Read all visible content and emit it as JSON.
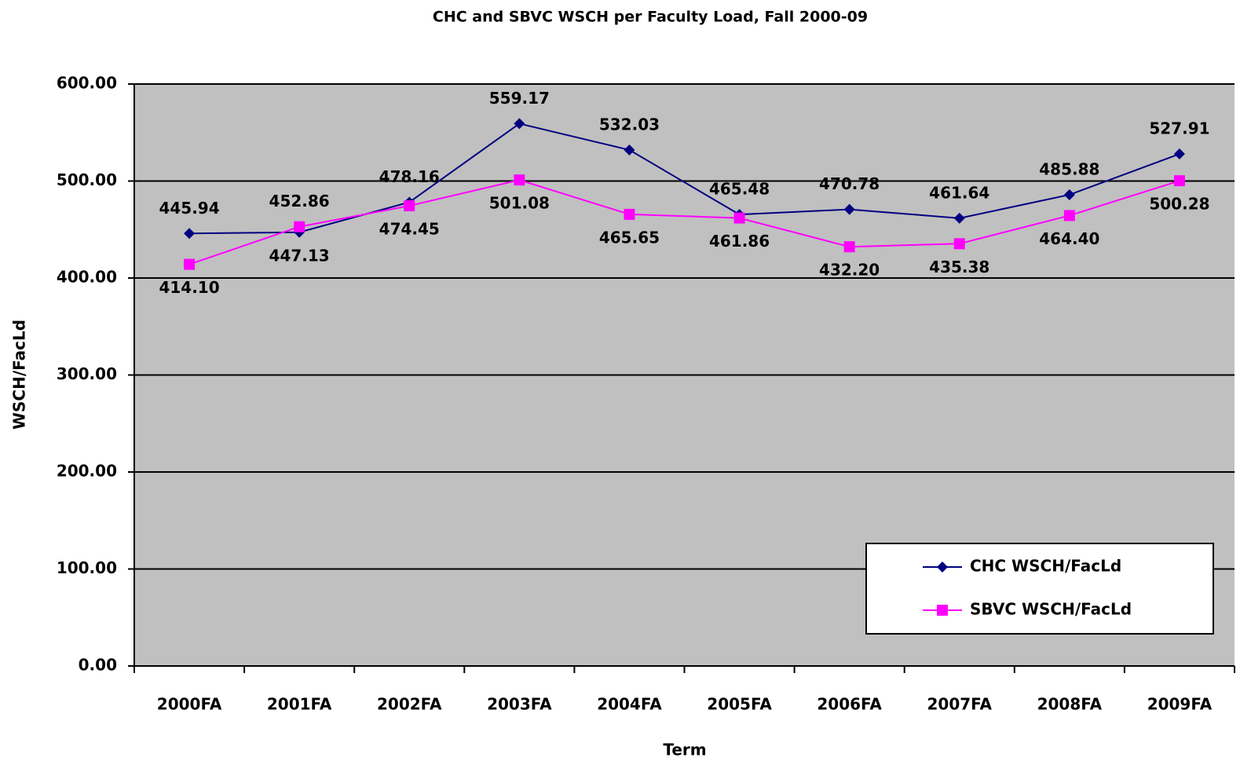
{
  "chart_data": {
    "type": "line",
    "title": "CHC and SBVC WSCH per Faculty Load, Fall 2000-09",
    "x_label": "Term",
    "y_label": "WSCH/FacLd",
    "categories": [
      "2000FA",
      "2001FA",
      "2002FA",
      "2003FA",
      "2004FA",
      "2005FA",
      "2006FA",
      "2007FA",
      "2008FA",
      "2009FA"
    ],
    "series": [
      {
        "name": "CHC WSCH/FacLd",
        "color": "#000080",
        "marker": "diamond",
        "values": [
          445.94,
          447.13,
          478.16,
          559.17,
          532.03,
          465.48,
          470.78,
          461.64,
          485.88,
          527.91
        ],
        "value_labels": [
          "445.94",
          "447.13",
          "478.16",
          "559.17",
          "532.03",
          "465.48",
          "470.78",
          "461.64",
          "485.88",
          "527.91"
        ]
      },
      {
        "name": "SBVC WSCH/FacLd",
        "color": "#ff00ff",
        "marker": "square",
        "values": [
          414.1,
          452.86,
          474.45,
          501.08,
          465.65,
          461.86,
          432.2,
          435.38,
          464.4,
          500.28
        ],
        "value_labels": [
          "414.10",
          "452.86",
          "474.45",
          "501.08",
          "465.65",
          "461.86",
          "432.20",
          "435.38",
          "464.40",
          "500.28"
        ]
      }
    ],
    "ylim": [
      0,
      600
    ],
    "yticks": [
      {
        "value": 0,
        "label": "0.00"
      },
      {
        "value": 100,
        "label": "100.00"
      },
      {
        "value": 200,
        "label": "200.00"
      },
      {
        "value": 300,
        "label": "300.00"
      },
      {
        "value": 400,
        "label": "400.00"
      },
      {
        "value": 500,
        "label": "500.00"
      },
      {
        "value": 600,
        "label": "600.00"
      }
    ],
    "grid": true,
    "plot_background": "#c0c0c0",
    "legend_position": "lower right"
  }
}
